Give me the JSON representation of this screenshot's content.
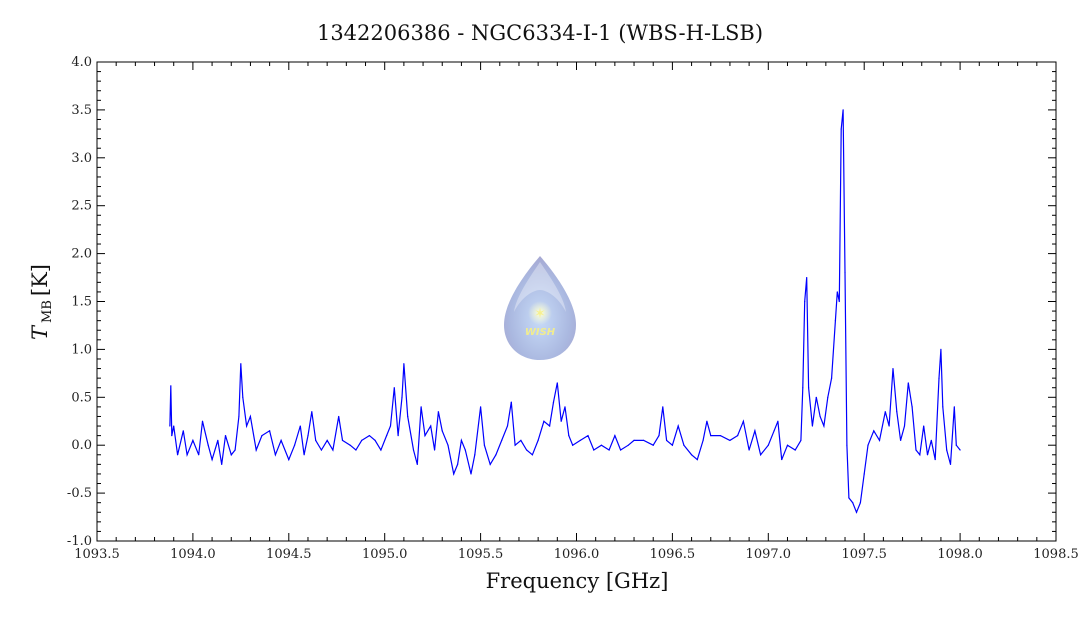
{
  "chart_data": {
    "type": "line",
    "title": "1342206386 - NGC6334-I-1 (WBS-H-LSB)",
    "xlabel": "Frequency [GHz]",
    "ylabel_main": "T",
    "ylabel_sub": "MB",
    "ylabel_unit": "[K]",
    "xlim": [
      1093.5,
      1098.5
    ],
    "ylim": [
      -1.0,
      4.0
    ],
    "x_ticks": [
      "1093.5",
      "1094.0",
      "1094.5",
      "1095.0",
      "1095.5",
      "1096.0",
      "1096.5",
      "1097.0",
      "1097.5",
      "1098.0",
      "1098.5"
    ],
    "y_ticks": [
      "-1.0",
      "-0.5",
      "0.0",
      "0.5",
      "1.0",
      "1.5",
      "2.0",
      "2.5",
      "3.0",
      "3.5",
      "4.0"
    ],
    "grid": false,
    "line_color": "#0000ff",
    "logo_text": "WISH",
    "series": [
      {
        "x": [
          1093.88,
          1093.885,
          1093.89,
          1093.9,
          1093.92,
          1093.95,
          1093.97,
          1094.0,
          1094.03,
          1094.05,
          1094.08,
          1094.1,
          1094.13,
          1094.15,
          1094.17,
          1094.2,
          1094.22,
          1094.24,
          1094.25,
          1094.26,
          1094.28,
          1094.3,
          1094.33,
          1094.36,
          1094.4,
          1094.43,
          1094.46,
          1094.5,
          1094.53,
          1094.56,
          1094.58,
          1094.6,
          1094.62,
          1094.64,
          1094.67,
          1094.7,
          1094.73,
          1094.76,
          1094.78,
          1094.82,
          1094.85,
          1094.88,
          1094.92,
          1094.95,
          1094.98,
          1095.01,
          1095.03,
          1095.05,
          1095.07,
          1095.09,
          1095.1,
          1095.12,
          1095.15,
          1095.17,
          1095.19,
          1095.21,
          1095.24,
          1095.26,
          1095.28,
          1095.3,
          1095.33,
          1095.36,
          1095.38,
          1095.4,
          1095.42,
          1095.45,
          1095.47,
          1095.5,
          1095.52,
          1095.55,
          1095.58,
          1095.61,
          1095.64,
          1095.66,
          1095.68,
          1095.71,
          1095.74,
          1095.77,
          1095.8,
          1095.83,
          1095.86,
          1095.88,
          1095.9,
          1095.92,
          1095.94,
          1095.96,
          1095.98,
          1096.02,
          1096.06,
          1096.09,
          1096.13,
          1096.17,
          1096.2,
          1096.23,
          1096.27,
          1096.3,
          1096.35,
          1096.4,
          1096.43,
          1096.45,
          1096.47,
          1096.5,
          1096.53,
          1096.56,
          1096.6,
          1096.63,
          1096.66,
          1096.68,
          1096.7,
          1096.75,
          1096.8,
          1096.84,
          1096.87,
          1096.9,
          1096.93,
          1096.96,
          1097.0,
          1097.03,
          1097.05,
          1097.07,
          1097.1,
          1097.14,
          1097.17,
          1097.18,
          1097.19,
          1097.2,
          1097.21,
          1097.23,
          1097.25,
          1097.27,
          1097.29,
          1097.31,
          1097.33,
          1097.35,
          1097.36,
          1097.37,
          1097.38,
          1097.39,
          1097.4,
          1097.41,
          1097.42,
          1097.44,
          1097.46,
          1097.48,
          1097.5,
          1097.52,
          1097.55,
          1097.58,
          1097.61,
          1097.63,
          1097.65,
          1097.67,
          1097.69,
          1097.71,
          1097.73,
          1097.75,
          1097.77,
          1097.79,
          1097.81,
          1097.83,
          1097.85,
          1097.87,
          1097.89,
          1097.9,
          1097.91,
          1097.93,
          1097.95,
          1097.97,
          1097.98,
          1098.0
        ],
        "y": [
          0.2,
          0.62,
          0.1,
          0.2,
          -0.1,
          0.15,
          -0.1,
          0.05,
          -0.1,
          0.25,
          0.0,
          -0.15,
          0.05,
          -0.2,
          0.1,
          -0.1,
          -0.05,
          0.3,
          0.85,
          0.5,
          0.2,
          0.3,
          -0.05,
          0.1,
          0.15,
          -0.1,
          0.05,
          -0.15,
          0.0,
          0.2,
          -0.1,
          0.1,
          0.35,
          0.05,
          -0.05,
          0.05,
          -0.05,
          0.3,
          0.05,
          0.0,
          -0.05,
          0.05,
          0.1,
          0.05,
          -0.05,
          0.1,
          0.2,
          0.6,
          0.1,
          0.5,
          0.85,
          0.3,
          -0.05,
          -0.2,
          0.4,
          0.1,
          0.2,
          -0.05,
          0.35,
          0.15,
          0.0,
          -0.3,
          -0.2,
          0.05,
          -0.05,
          -0.3,
          -0.1,
          0.4,
          0.0,
          -0.2,
          -0.1,
          0.05,
          0.2,
          0.45,
          0.0,
          0.05,
          -0.05,
          -0.1,
          0.05,
          0.25,
          0.2,
          0.45,
          0.65,
          0.25,
          0.4,
          0.1,
          0.0,
          0.05,
          0.1,
          -0.05,
          0.0,
          -0.05,
          0.1,
          -0.05,
          0.0,
          0.05,
          0.05,
          0.0,
          0.1,
          0.4,
          0.05,
          0.0,
          0.2,
          0.0,
          -0.1,
          -0.15,
          0.05,
          0.25,
          0.1,
          0.1,
          0.05,
          0.1,
          0.25,
          -0.05,
          0.15,
          -0.1,
          0.0,
          0.15,
          0.25,
          -0.15,
          0.0,
          -0.05,
          0.05,
          0.6,
          1.5,
          1.75,
          0.6,
          0.2,
          0.5,
          0.3,
          0.2,
          0.5,
          0.7,
          1.3,
          1.6,
          1.5,
          3.3,
          3.5,
          1.8,
          0.0,
          -0.55,
          -0.6,
          -0.7,
          -0.6,
          -0.3,
          0.0,
          0.15,
          0.05,
          0.35,
          0.2,
          0.8,
          0.35,
          0.05,
          0.2,
          0.65,
          0.4,
          -0.05,
          -0.1,
          0.2,
          -0.1,
          0.05,
          -0.15,
          0.7,
          1.0,
          0.4,
          -0.05,
          -0.2,
          0.4,
          0.0,
          -0.05
        ]
      }
    ]
  }
}
